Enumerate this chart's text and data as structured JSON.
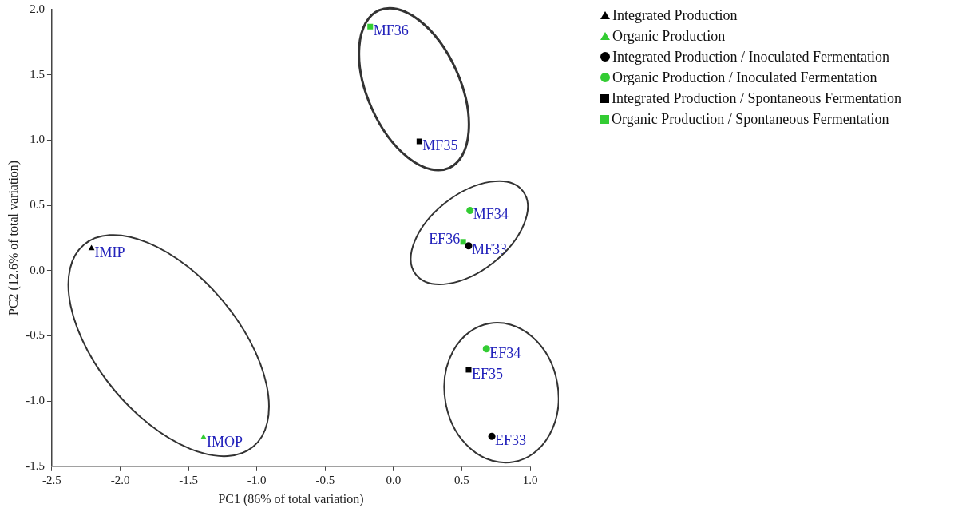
{
  "chart_data": {
    "type": "scatter",
    "xlabel": "PC1 (86% of total variation)",
    "ylabel": "PC2 (12.6% of total variation)",
    "xlim": [
      -2.5,
      1.0
    ],
    "ylim": [
      -1.5,
      2.0
    ],
    "xticks": [
      {
        "value": -2.5,
        "label": "-2.5"
      },
      {
        "value": -2.0,
        "label": "-2.0"
      },
      {
        "value": -1.5,
        "label": "-1.5"
      },
      {
        "value": -1.0,
        "label": "-1.0"
      },
      {
        "value": -0.5,
        "label": "-0.5"
      },
      {
        "value": 0,
        "label": "0.0"
      },
      {
        "value": 0.5,
        "label": "0.5"
      },
      {
        "value": 1.0,
        "label": "1.0"
      }
    ],
    "yticks": [
      {
        "value": -1.5,
        "label": "-1.5"
      },
      {
        "value": -1.0,
        "label": "-1.0"
      },
      {
        "value": -0.5,
        "label": "-0.5"
      },
      {
        "value": 0,
        "label": "0.0"
      },
      {
        "value": 0.5,
        "label": "0.5"
      },
      {
        "value": 1.0,
        "label": "1.0"
      },
      {
        "value": 1.5,
        "label": "1.5"
      },
      {
        "value": 2.0,
        "label": "2.0"
      }
    ],
    "grid": false,
    "legend": "right",
    "series": [
      {
        "name": "Integrated Production",
        "color": "#000000",
        "marker": "triangle",
        "x": [
          -2.21
        ],
        "values": [
          0.17
        ]
      },
      {
        "name": "Organic Production",
        "color": "#33cc33",
        "marker": "triangle",
        "x": [
          -1.39
        ],
        "values": [
          -1.28
        ]
      },
      {
        "name": "Integrated Production / Inoculated Fermentation",
        "color": "#000000",
        "marker": "circle",
        "x": [
          0.55,
          0.72
        ],
        "values": [
          0.19,
          -1.27
        ]
      },
      {
        "name": "Organic Production / Inoculated Fermentation",
        "color": "#33cc33",
        "marker": "circle",
        "x": [
          0.56,
          0.68
        ],
        "values": [
          0.46,
          -0.6
        ]
      },
      {
        "name": "Integrated Production / Spontaneous Fermentation",
        "color": "#000000",
        "marker": "square",
        "x": [
          0.19,
          0.55
        ],
        "values": [
          0.99,
          -0.76
        ]
      },
      {
        "name": "Organic Production / Spontaneous Fermentation",
        "color": "#33cc33",
        "marker": "square",
        "x": [
          -0.17,
          0.51
        ],
        "values": [
          1.87,
          0.22
        ]
      }
    ],
    "annotations": [
      {
        "text": "IMIP",
        "x": -2.21,
        "y": 0.17
      },
      {
        "text": "IMOP",
        "x": -1.39,
        "y": -1.28
      },
      {
        "text": "MF36",
        "x": -0.17,
        "y": 1.87
      },
      {
        "text": "MF35",
        "x": 0.19,
        "y": 0.99
      },
      {
        "text": "MF34",
        "x": 0.56,
        "y": 0.46
      },
      {
        "text": "MF33",
        "x": 0.55,
        "y": 0.19
      },
      {
        "text": "EF36",
        "x": 0.51,
        "y": 0.22
      },
      {
        "text": "EF34",
        "x": 0.68,
        "y": -0.6
      },
      {
        "text": "EF35",
        "x": 0.55,
        "y": -0.76
      },
      {
        "text": "EF33",
        "x": 0.72,
        "y": -1.27
      }
    ]
  }
}
